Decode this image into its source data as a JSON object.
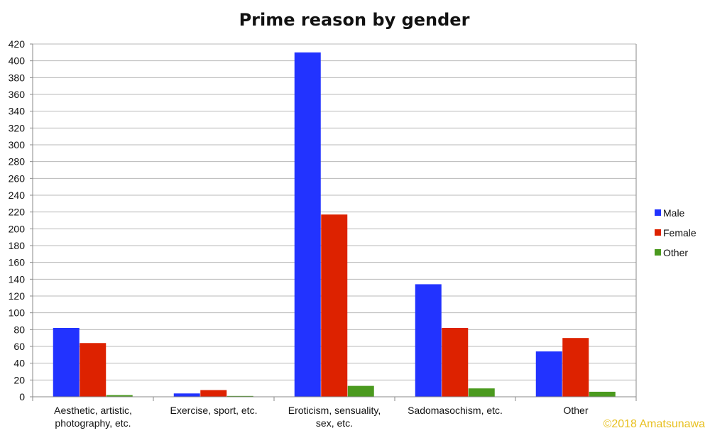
{
  "chart_data": {
    "type": "bar",
    "title": "Prime reason by gender",
    "xlabel": "",
    "ylabel": "",
    "categories": [
      [
        "Aesthetic, artistic,",
        "photography, etc."
      ],
      [
        "Exercise, sport, etc."
      ],
      [
        "Eroticism, sensuality,",
        "sex, etc."
      ],
      [
        "Sadomasochism, etc."
      ],
      [
        "Other"
      ]
    ],
    "series": [
      {
        "name": "Male",
        "color": "#2233ff",
        "values": [
          82,
          4,
          410,
          134,
          54
        ]
      },
      {
        "name": "Female",
        "color": "#dd2200",
        "values": [
          64,
          8,
          217,
          82,
          70
        ]
      },
      {
        "name": "Other",
        "color": "#4b9a1f",
        "values": [
          2,
          1,
          13,
          10,
          6
        ]
      }
    ],
    "ylim": [
      0,
      420
    ],
    "yticks": [
      0,
      20,
      40,
      60,
      80,
      100,
      120,
      140,
      160,
      180,
      200,
      220,
      240,
      260,
      280,
      300,
      320,
      340,
      360,
      380,
      400,
      420
    ],
    "grid": true,
    "legend": "right"
  },
  "credit": "©2018 Amatsunawa"
}
